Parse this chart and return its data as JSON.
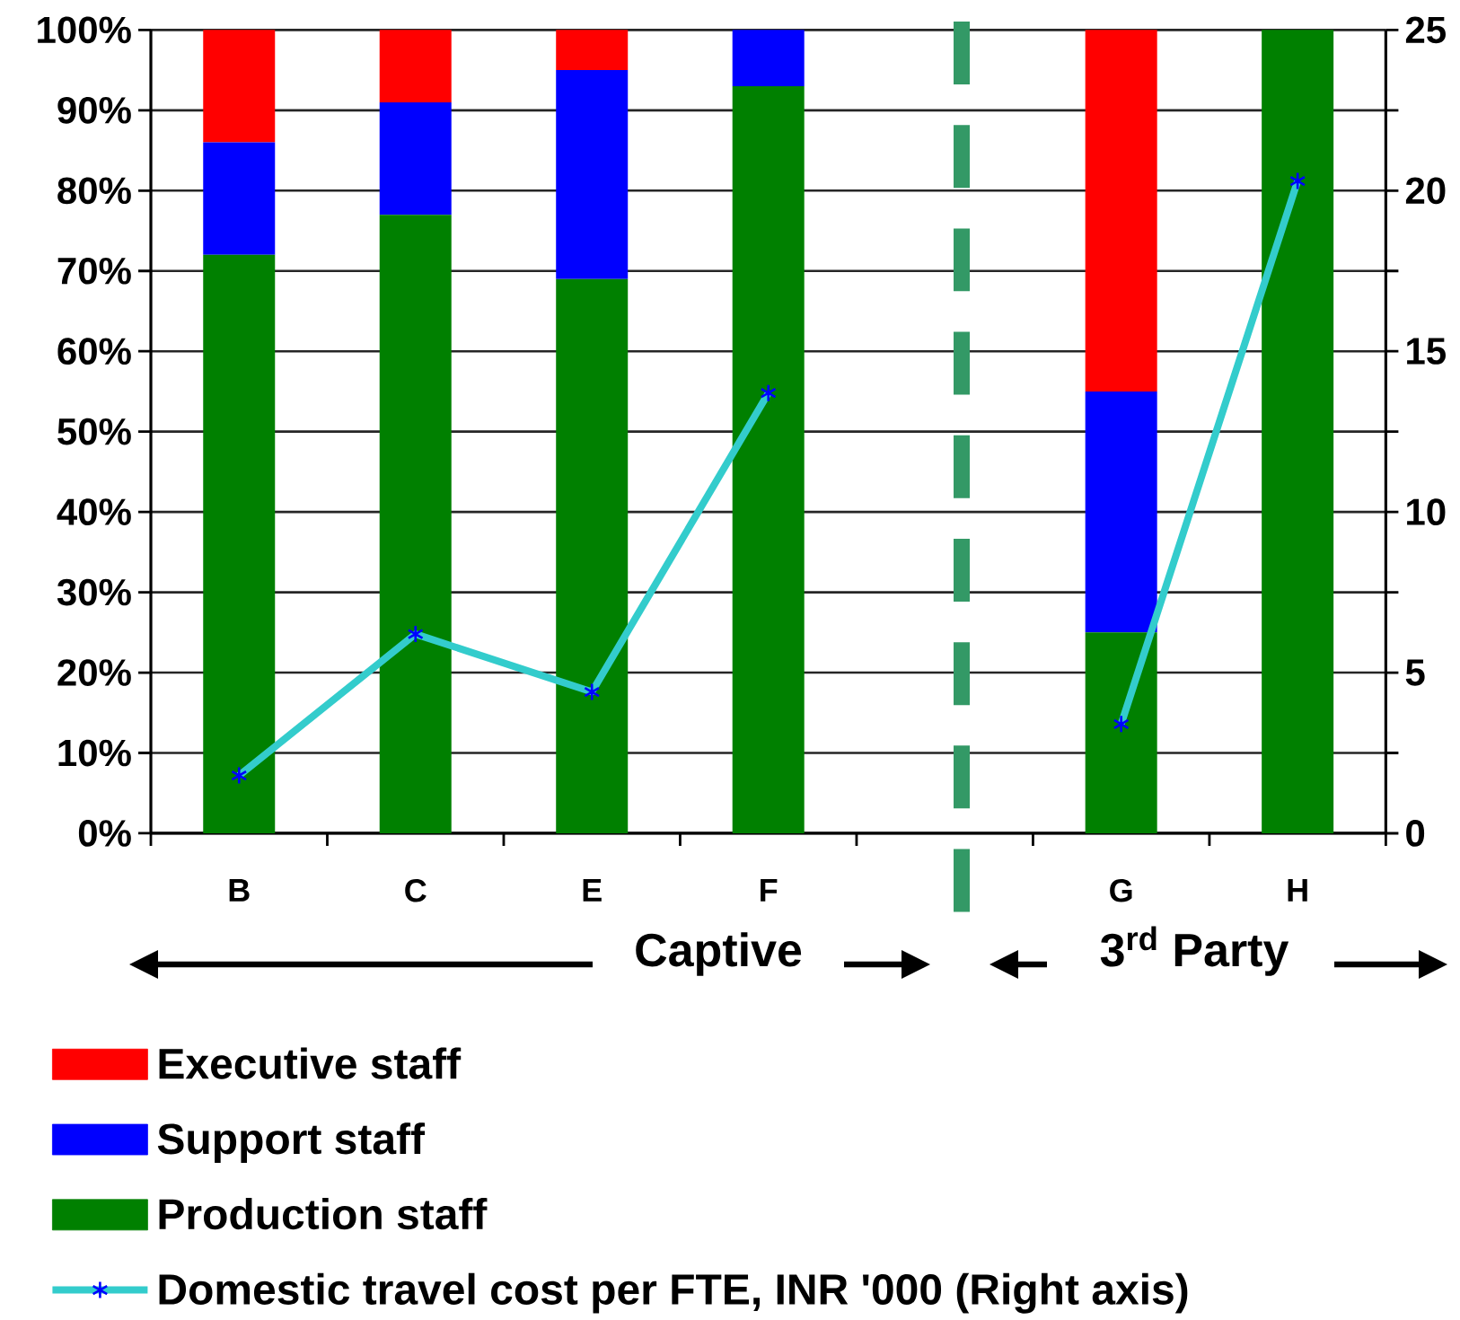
{
  "chart_data": {
    "type": "bar",
    "stacked": true,
    "categories": [
      "B",
      "C",
      "E",
      "F",
      null,
      "G",
      "H"
    ],
    "series": [
      {
        "name": "Production staff",
        "color": "#008000",
        "values": [
          72,
          77,
          69,
          93,
          null,
          25,
          100
        ]
      },
      {
        "name": "Support staff",
        "color": "#0000ff",
        "values": [
          14,
          14,
          26,
          7,
          null,
          30,
          0
        ]
      },
      {
        "name": "Executive staff",
        "color": "#ff0000",
        "values": [
          14,
          9,
          5,
          0,
          null,
          45,
          0
        ]
      },
      {
        "name": "Domestic travel cost per FTE, INR '000 (Right axis)",
        "type": "line",
        "axis": "y2",
        "color": "#33cccc",
        "marker": "cross",
        "values": [
          1.8,
          6.2,
          4.4,
          13.7,
          null,
          3.4,
          20.3
        ]
      }
    ],
    "ylim": [
      0,
      100
    ],
    "yticks": [
      {
        "value": 0,
        "label": "0%"
      },
      {
        "value": 10,
        "label": "10%"
      },
      {
        "value": 20,
        "label": "20%"
      },
      {
        "value": 30,
        "label": "30%"
      },
      {
        "value": 40,
        "label": "40%"
      },
      {
        "value": 50,
        "label": "50%"
      },
      {
        "value": 60,
        "label": "60%"
      },
      {
        "value": 70,
        "label": "70%"
      },
      {
        "value": 80,
        "label": "80%"
      },
      {
        "value": 90,
        "label": "90%"
      },
      {
        "value": 100,
        "label": "100%"
      }
    ],
    "y2lim": [
      0,
      25
    ],
    "y2ticks": [
      0,
      {
        "value": 2.5,
        "label": null
      },
      5,
      {
        "value": 7.5,
        "label": null
      },
      10,
      {
        "value": 12.5,
        "label": null
      },
      15,
      {
        "value": 17.5,
        "label": null
      },
      20,
      {
        "value": 22.5,
        "label": null
      },
      25
    ],
    "grid": "y",
    "legend": "bottom",
    "annotations": [
      "Captive",
      "3$^{rd}$ Party"
    ]
  }
}
